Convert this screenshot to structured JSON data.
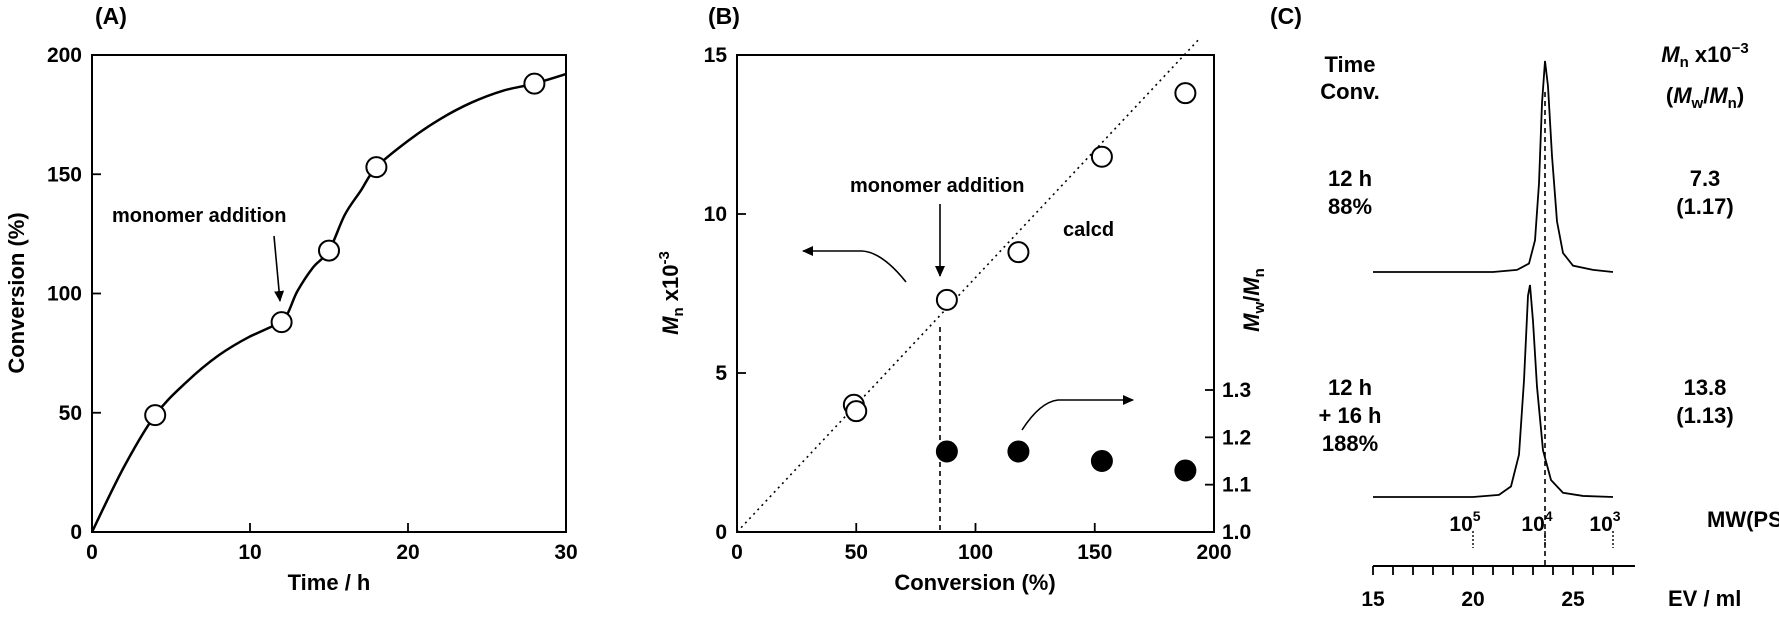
{
  "panels": {
    "a": "(A)",
    "b": "(B)",
    "c": "(C)"
  },
  "chart_data": [
    {
      "type": "scatter",
      "panel_label": "(A)",
      "xlabel": "Time / h",
      "ylabel": "Conversion (%)",
      "xlim": [
        0,
        30
      ],
      "ylim": [
        0,
        200
      ],
      "x_ticks": [
        0,
        10,
        20,
        30
      ],
      "y_ticks": [
        0,
        50,
        100,
        150,
        200
      ],
      "x_tick_labels": [
        "0",
        "10",
        "20",
        "30"
      ],
      "y_tick_labels": [
        "0",
        "50",
        "100",
        "150",
        "200"
      ],
      "series": [
        {
          "marker": "open-circle",
          "points": [
            [
              4,
              49
            ],
            [
              12,
              88
            ],
            [
              15,
              118
            ],
            [
              18,
              153
            ],
            [
              28,
              188
            ]
          ]
        }
      ],
      "fit_curve": [
        [
          0,
          0
        ],
        [
          2,
          27
        ],
        [
          4,
          49
        ],
        [
          6,
          63
        ],
        [
          8,
          74
        ],
        [
          10,
          82
        ],
        [
          12,
          88
        ],
        [
          13,
          101
        ],
        [
          14,
          111
        ],
        [
          15,
          118
        ],
        [
          16,
          133
        ],
        [
          17,
          143
        ],
        [
          18,
          153
        ],
        [
          20,
          164
        ],
        [
          22,
          173
        ],
        [
          24,
          180
        ],
        [
          26,
          185
        ],
        [
          28,
          188
        ],
        [
          30,
          192
        ]
      ],
      "annotations": [
        {
          "text": "monomer addition",
          "x": 12,
          "y": 88
        }
      ],
      "grid": false
    },
    {
      "type": "scatter",
      "panel_label": "(B)",
      "xlabel": "Conversion (%)",
      "ylabel_left": "Mn x10-3",
      "ylabel_right": "Mw/Mn",
      "xlim": [
        0,
        200
      ],
      "ylim_left": [
        0,
        15
      ],
      "ylim_right": [
        1.0,
        1.3
      ],
      "x_ticks": [
        0,
        50,
        100,
        150,
        200
      ],
      "y_ticks_left": [
        0,
        5,
        10,
        15
      ],
      "y_ticks_right": [
        1.0,
        1.1,
        1.2,
        1.3
      ],
      "x_tick_labels": [
        "0",
        "50",
        "100",
        "150",
        "200"
      ],
      "y_tick_labels_left": [
        "0",
        "5",
        "10",
        "15"
      ],
      "y_tick_labels_right": [
        "1.0",
        "1.1",
        "1.2",
        "1.3"
      ],
      "series": [
        {
          "axis": "left",
          "marker": "open-circle",
          "points": [
            [
              49,
              4.0
            ],
            [
              50,
              3.8
            ],
            [
              88,
              7.3
            ],
            [
              118,
              8.8
            ],
            [
              153,
              11.8
            ],
            [
              188,
              13.8
            ]
          ]
        },
        {
          "axis": "right",
          "marker": "filled-circle",
          "points": [
            [
              88,
              1.17
            ],
            [
              118,
              1.17
            ],
            [
              153,
              1.15
            ],
            [
              188,
              1.13
            ]
          ]
        }
      ],
      "reference_line": {
        "label": "calcd",
        "points": [
          [
            0,
            0
          ],
          [
            200,
            16
          ]
        ]
      },
      "annotations": [
        {
          "text": "monomer addition",
          "x": 88,
          "y": 7.3
        },
        {
          "text": "calcd",
          "x": 137,
          "y": 9.6
        }
      ],
      "grid": false
    },
    {
      "type": "line",
      "panel_label": "(C)",
      "xlabel": "EV / ml",
      "xlim": [
        15,
        27
      ],
      "x_ticks": [
        15,
        20,
        25
      ],
      "x_tick_labels": [
        "15",
        "20",
        "25"
      ],
      "mw_axis_label": "MW(PSt)",
      "mw_ticks": [
        {
          "label": "10",
          "exponent": "5",
          "ev": 20
        },
        {
          "label": "10",
          "exponent": "4",
          "ev": 23.6
        },
        {
          "label": "10",
          "exponent": "3",
          "ev": 27
        }
      ],
      "left_header": [
        "Time",
        "Conv."
      ],
      "right_header": [
        "Mn x10-3",
        "(Mw/Mn)"
      ],
      "series": [
        {
          "left_label": [
            "12 h",
            "88%"
          ],
          "right_label": [
            "7.3",
            "(1.17)"
          ],
          "peak_ev": 23.6,
          "points": [
            [
              15,
              0
            ],
            [
              21,
              0
            ],
            [
              22.2,
              0.01
            ],
            [
              22.8,
              0.04
            ],
            [
              23.1,
              0.15
            ],
            [
              23.3,
              0.42
            ],
            [
              23.45,
              0.8
            ],
            [
              23.6,
              1.0
            ],
            [
              23.75,
              0.88
            ],
            [
              23.95,
              0.55
            ],
            [
              24.2,
              0.24
            ],
            [
              24.5,
              0.09
            ],
            [
              25,
              0.03
            ],
            [
              26,
              0.01
            ],
            [
              27,
              0
            ]
          ]
        },
        {
          "left_label": [
            "12 h",
            "+ 16 h",
            "188%"
          ],
          "right_label": [
            "13.8",
            "(1.13)"
          ],
          "peak_ev": 22.8,
          "points": [
            [
              15,
              0
            ],
            [
              20,
              0
            ],
            [
              21.3,
              0.01
            ],
            [
              21.9,
              0.05
            ],
            [
              22.3,
              0.2
            ],
            [
              22.55,
              0.55
            ],
            [
              22.75,
              0.95
            ],
            [
              22.85,
              1.0
            ],
            [
              23.0,
              0.83
            ],
            [
              23.2,
              0.52
            ],
            [
              23.5,
              0.22
            ],
            [
              23.9,
              0.08
            ],
            [
              24.5,
              0.02
            ],
            [
              25.5,
              0.005
            ],
            [
              27,
              0
            ]
          ]
        }
      ],
      "grid": false
    }
  ]
}
